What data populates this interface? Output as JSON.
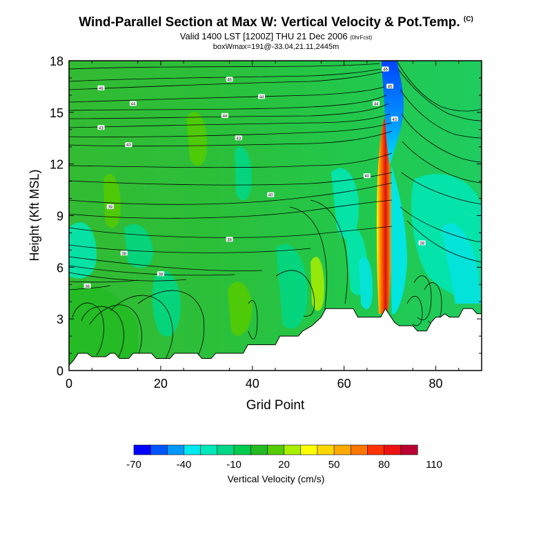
{
  "title": "Wind-Parallel Section at Max W: Vertical Velocity & Pot.Temp.",
  "title_tag": "(C)",
  "subtitle": "Valid 1400 LST [1200Z] THU 21 Dec 2006",
  "subtitle_tag": "(0hrFcst)",
  "subtitle2": "boxWmax=191@-33.04,21.11,2445m",
  "chart_data": {
    "type": "heatmap",
    "xlabel": "Grid Point",
    "ylabel": "Height (Kft MSL)",
    "xlim": [
      0,
      90
    ],
    "ylim": [
      0,
      18
    ],
    "xticks": [
      "0",
      "20",
      "40",
      "60",
      "80"
    ],
    "yticks": [
      "0",
      "3",
      "6",
      "9",
      "12",
      "15",
      "18"
    ],
    "max_w_cm_s": 191,
    "max_w_location": "-33.04,21.11,2445m",
    "colorbar": {
      "label": "Vertical Velocity (cm/s)",
      "ticks": [
        "-70",
        "-40",
        "-10",
        "20",
        "50",
        "80",
        "110"
      ],
      "colors": [
        "#0000ff",
        "#0055ff",
        "#0099ff",
        "#00e8f0",
        "#00e8b8",
        "#00d888",
        "#00cc50",
        "#22bb22",
        "#55cc00",
        "#aaee00",
        "#ffff00",
        "#ffd700",
        "#ffaa00",
        "#ff7700",
        "#ff3300",
        "#ee1111",
        "#bb0033"
      ]
    },
    "terrain_kft": [
      [
        0,
        0.3
      ],
      [
        1,
        0.6
      ],
      [
        2,
        1.0
      ],
      [
        4,
        1.0
      ],
      [
        5,
        0.8
      ],
      [
        8,
        0.8
      ],
      [
        9,
        1.0
      ],
      [
        10,
        1.0
      ],
      [
        11,
        0.7
      ],
      [
        13,
        0.7
      ],
      [
        14,
        1.0
      ],
      [
        18,
        1.0
      ],
      [
        19,
        0.7
      ],
      [
        22,
        0.7
      ],
      [
        23,
        1.0
      ],
      [
        28,
        1.0
      ],
      [
        29,
        0.7
      ],
      [
        31,
        0.7
      ],
      [
        32,
        1.0
      ],
      [
        38,
        1.0
      ],
      [
        39,
        1.5
      ],
      [
        45,
        1.5
      ],
      [
        46,
        2.0
      ],
      [
        50,
        2.0
      ],
      [
        51,
        2.3
      ],
      [
        53,
        2.6
      ],
      [
        55,
        3.1
      ],
      [
        56,
        3.6
      ],
      [
        62,
        3.6
      ],
      [
        63,
        3.1
      ],
      [
        68,
        3.1
      ],
      [
        69,
        3.6
      ],
      [
        71,
        2.8
      ],
      [
        72,
        2.6
      ],
      [
        75,
        2.6
      ],
      [
        76,
        2.3
      ],
      [
        78,
        2.3
      ],
      [
        79,
        2.8
      ],
      [
        80,
        3.1
      ],
      [
        81,
        3.1
      ],
      [
        82,
        3.3
      ],
      [
        83,
        3.1
      ],
      [
        85,
        3.1
      ],
      [
        86,
        3.6
      ],
      [
        88,
        3.6
      ],
      [
        89,
        3.3
      ],
      [
        90,
        3.3
      ]
    ],
    "contour_labels": [
      {
        "x": 7,
        "y": 16.4,
        "text": "46"
      },
      {
        "x": 35,
        "y": 16.9,
        "text": "46"
      },
      {
        "x": 14,
        "y": 15.5,
        "text": "44"
      },
      {
        "x": 42,
        "y": 15.9,
        "text": "44"
      },
      {
        "x": 34,
        "y": 14.8,
        "text": "44"
      },
      {
        "x": 7,
        "y": 14.1,
        "text": "43"
      },
      {
        "x": 37,
        "y": 13.5,
        "text": "43"
      },
      {
        "x": 13,
        "y": 13.1,
        "text": "43"
      },
      {
        "x": 65,
        "y": 11.3,
        "text": "40"
      },
      {
        "x": 44,
        "y": 10.2,
        "text": "40"
      },
      {
        "x": 9,
        "y": 9.5,
        "text": "39"
      },
      {
        "x": 35,
        "y": 7.6,
        "text": "38"
      },
      {
        "x": 12,
        "y": 6.8,
        "text": "38"
      },
      {
        "x": 20,
        "y": 5.6,
        "text": "38"
      },
      {
        "x": 4,
        "y": 4.9,
        "text": "36"
      },
      {
        "x": 77,
        "y": 7.4,
        "text": "38"
      },
      {
        "x": 69,
        "y": 17.5,
        "text": "46"
      },
      {
        "x": 70,
        "y": 16.5,
        "text": "45"
      },
      {
        "x": 67,
        "y": 15.5,
        "text": "44"
      },
      {
        "x": 71,
        "y": 14.6,
        "text": "43"
      }
    ]
  }
}
